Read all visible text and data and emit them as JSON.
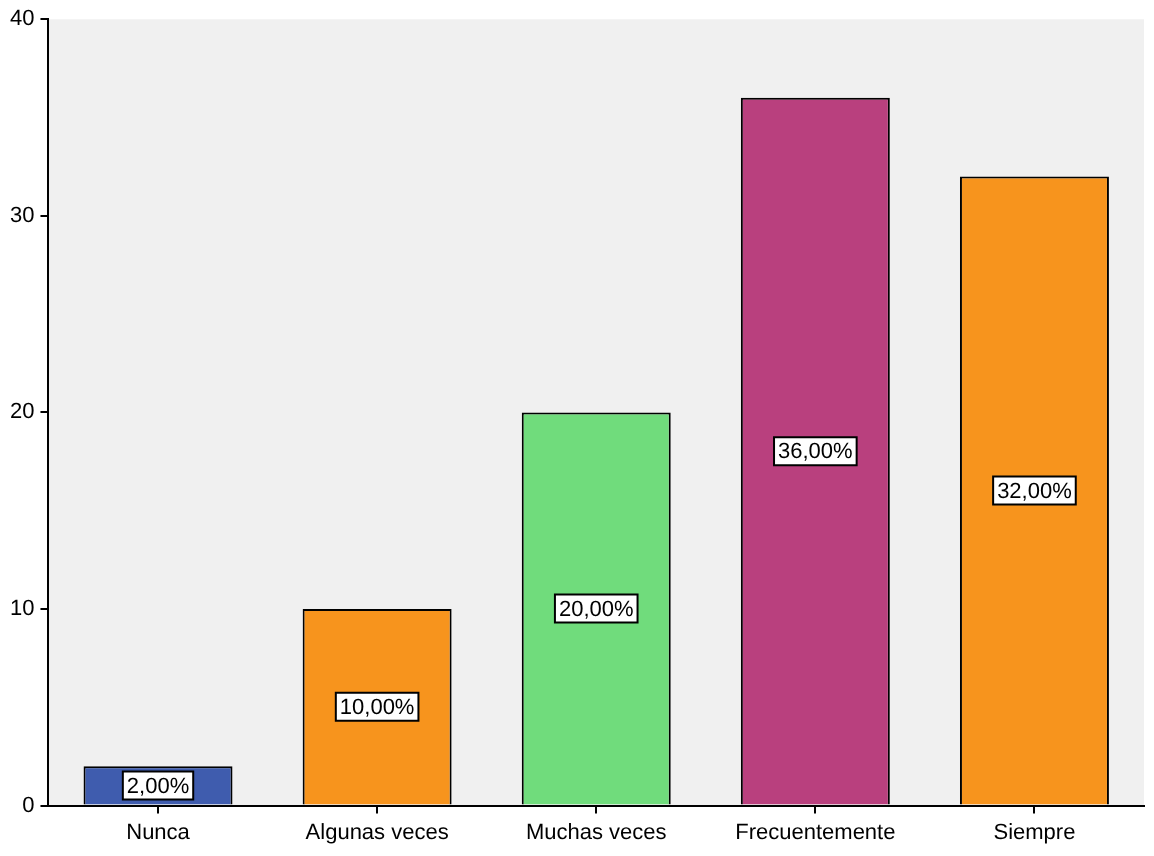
{
  "chart_data": {
    "type": "bar",
    "categories": [
      "Nunca",
      "Algunas veces",
      "Muchas veces",
      "Frecuentemente",
      "Siempre"
    ],
    "values": [
      2,
      10,
      20,
      36,
      32
    ],
    "colors": [
      "#3f5cae",
      "#f7941d",
      "#70dc7c",
      "#b9407e",
      "#f7941d"
    ],
    "value_labels": [
      "2,00%",
      "10,00%",
      "20,00%",
      "36,00%",
      "32,00%"
    ],
    "ylim": [
      0,
      40
    ],
    "yticks": [
      0,
      10,
      20,
      30,
      40
    ]
  }
}
